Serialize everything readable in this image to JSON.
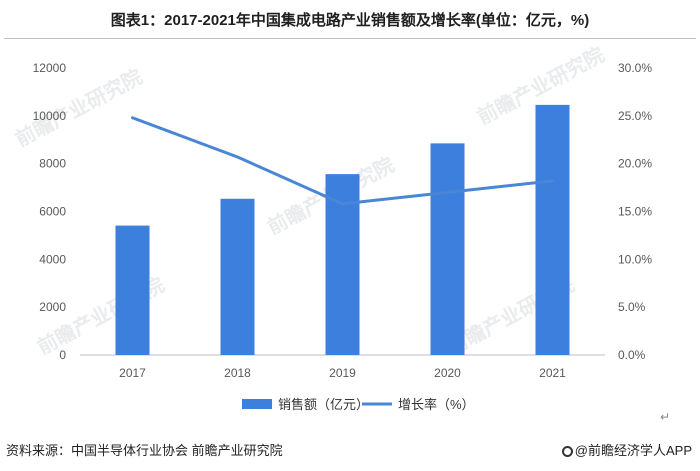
{
  "page": {
    "title": "图表1：2017-2021年中国集成电路产业销售额及增长率(单位：亿元，%)",
    "source": "资料来源：中国半导体行业协会 前瞻产业研究院",
    "brand": "@前瞻经济学人APP",
    "watermark": "前瞻产业研究院",
    "return_mark": "↵"
  },
  "colors": {
    "bar": "#3c7fdc",
    "line": "#4a86d6",
    "axis": "#bfbfbf",
    "tick_text": "#595959"
  },
  "chart_data": {
    "type": "bar",
    "title": "图表1：2017-2021年中国集成电路产业销售额及增长率(单位：亿元，%)",
    "categories": [
      "2017",
      "2018",
      "2019",
      "2020",
      "2021"
    ],
    "series": [
      {
        "name": "销售额（亿元）",
        "type": "bar",
        "axis": "left",
        "values": [
          5411,
          6532,
          7562,
          8848,
          10458
        ]
      },
      {
        "name": "增长率（%）",
        "type": "line",
        "axis": "right",
        "values": [
          24.8,
          20.7,
          15.8,
          17.0,
          18.2
        ]
      }
    ],
    "ylim": [
      0,
      12000
    ],
    "y_ticks": [
      "0",
      "2000",
      "4000",
      "6000",
      "8000",
      "10000",
      "12000"
    ],
    "y2lim": [
      0,
      30
    ],
    "y2_ticks": [
      "0.0%",
      "5.0%",
      "10.0%",
      "15.0%",
      "20.0%",
      "25.0%",
      "30.0%"
    ],
    "grid": false,
    "legend_position": "bottom"
  }
}
